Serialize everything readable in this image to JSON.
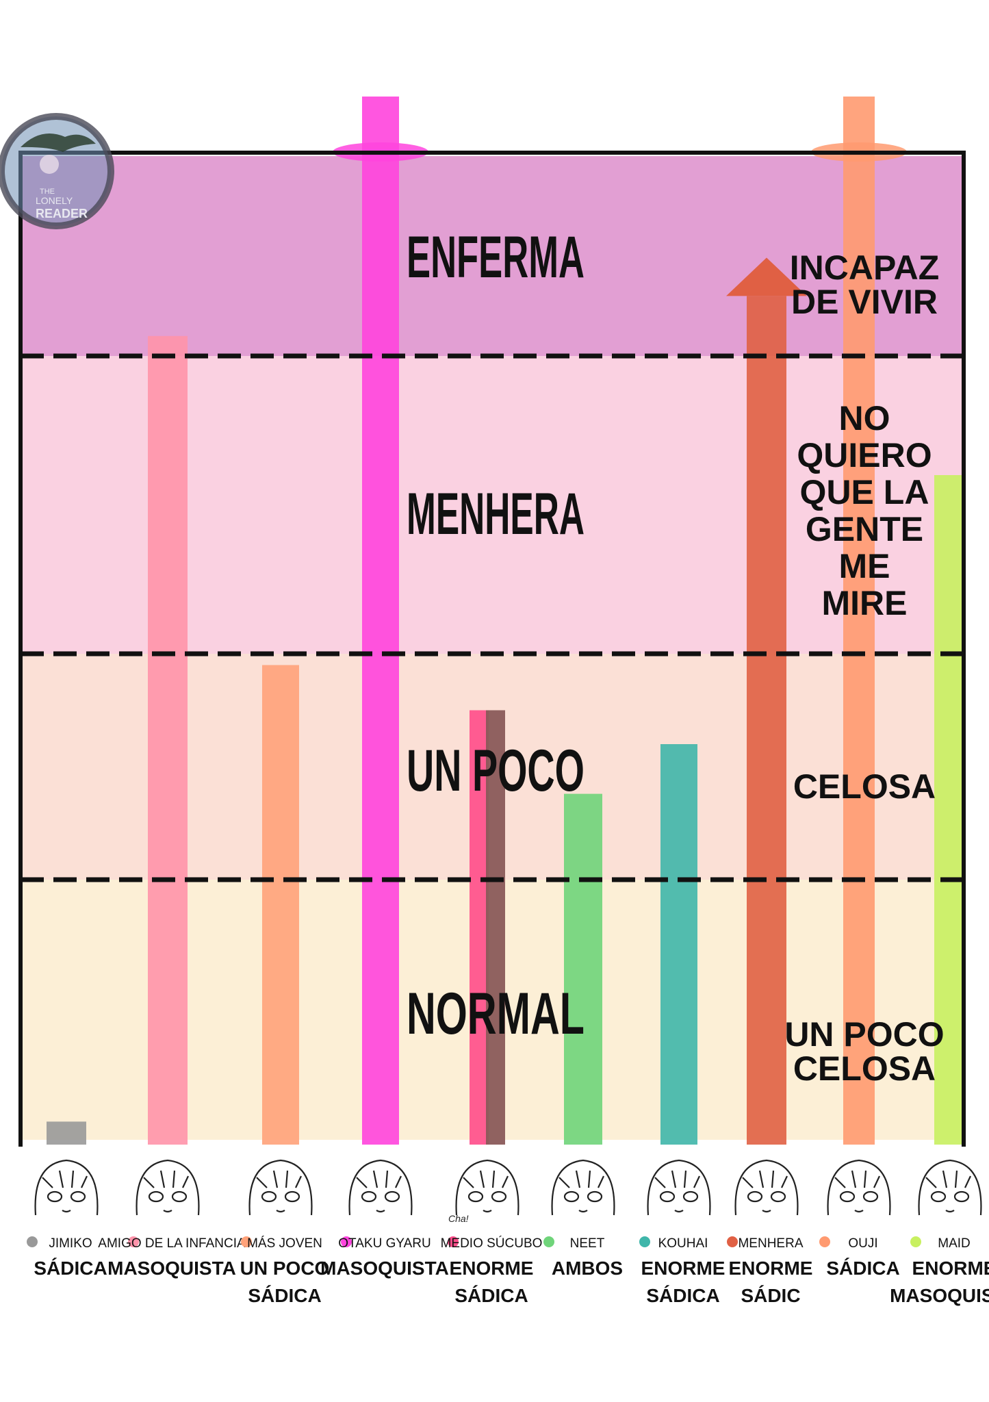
{
  "chart_data": {
    "type": "bar",
    "zones": [
      {
        "label": "NORMAL",
        "side_label": [
          "UN POCO",
          "CELOSA"
        ],
        "color": "#fcefd6"
      },
      {
        "label": "UN POCO",
        "side_label": [
          "CELOSA"
        ],
        "color": "#fbe0d6"
      },
      {
        "label": "MENHERA",
        "side_label": [
          "NO",
          "QUIERO",
          "QUE LA",
          "GENTE",
          "ME",
          "MIRE"
        ],
        "color": "#fad1e1"
      },
      {
        "label": "ENFERMA",
        "side_label": [
          "INCAPAZ",
          "DE VIVIR"
        ],
        "color": "#e29fd3"
      }
    ],
    "ylim": [
      0,
      4
    ],
    "grid": true,
    "categories": [
      {
        "name": "JIMIKO",
        "value": "SÁDICA",
        "level": 0.07,
        "color": "#999999"
      },
      {
        "name": "AMIGO DE LA INFANCIA",
        "value": "MASOQUISTA",
        "level": 3.1,
        "color": "#ff93aa"
      },
      {
        "name": "MÁS JOVEN",
        "value": "UN POCO SÁDICA",
        "level": 1.95,
        "color": "#ffa27a"
      },
      {
        "name": "OTAKU GYARU",
        "value": "MASOQUISTA",
        "level": 4.3,
        "color": "#ff44dd"
      },
      {
        "name": "MEDIO SÚCUBO",
        "value": "ENORME SÁDICA",
        "level": 1.75,
        "color": "#ff4d8a",
        "color2": "#8a5a5a"
      },
      {
        "name": "NEET",
        "value": "AMBOS",
        "level": 1.38,
        "color": "#6fd47a"
      },
      {
        "name": "KOUHAI",
        "value": "ENORME SÁDICA",
        "level": 1.6,
        "color": "#3fb6aa"
      },
      {
        "name": "MENHERA",
        "value": "ENORME SÁDIC",
        "level": 3.3,
        "color": "#e06044",
        "arrow": true
      },
      {
        "name": "OUJI",
        "value": "SÁDICA",
        "level": 4.3,
        "color": "#ff9a70"
      },
      {
        "name": "MAID",
        "value": "ENORME MASOQUISTA",
        "level": 2.6,
        "color": "#c8f060"
      }
    ]
  },
  "watermark": {
    "line1": "THE",
    "line2": "LONELY",
    "line3": "READER"
  },
  "face_extra": "Cha!"
}
